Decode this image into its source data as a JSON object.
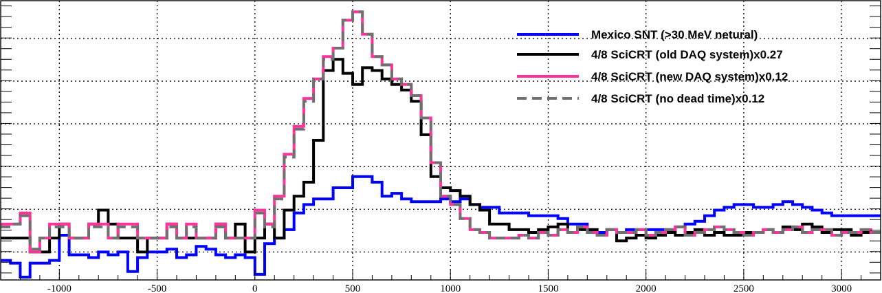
{
  "chart_data": {
    "type": "line",
    "title": "",
    "xlabel": "",
    "ylabel": "",
    "xlim": [
      -1300,
      3200
    ],
    "ylim": [
      0,
      100
    ],
    "grid": true,
    "legend_position": "top-right",
    "x_ticks": [
      -1000,
      -500,
      0,
      500,
      1000,
      1500,
      2000,
      2500,
      3000
    ],
    "x_tick_labels": [
      "-1000",
      "-500",
      "0",
      "500",
      "1000",
      "1500",
      "2000",
      "2500",
      "3000"
    ],
    "x_bin_edges": [
      -1300,
      -1250,
      -1200,
      -1150,
      -1100,
      -1050,
      -1000,
      -950,
      -900,
      -850,
      -800,
      -750,
      -700,
      -650,
      -600,
      -550,
      -500,
      -450,
      -400,
      -350,
      -300,
      -250,
      -200,
      -150,
      -100,
      -50,
      0,
      50,
      100,
      150,
      200,
      250,
      300,
      350,
      400,
      450,
      500,
      550,
      600,
      650,
      700,
      750,
      800,
      850,
      900,
      950,
      1000,
      1050,
      1100,
      1150,
      1200,
      1250,
      1300,
      1350,
      1400,
      1450,
      1500,
      1550,
      1600,
      1650,
      1700,
      1750,
      1800,
      1850,
      1900,
      1950,
      2000,
      2050,
      2100,
      2150,
      2200,
      2250,
      2300,
      2350,
      2400,
      2450,
      2500,
      2550,
      2600,
      2650,
      2700,
      2750,
      2800,
      2850,
      2900,
      2950,
      3000,
      3050,
      3100,
      3150,
      3200
    ],
    "series": [
      {
        "name": "Mexico SNT (>30 MeV netural)",
        "color": "#0000ff",
        "style": "solid",
        "values": [
          7,
          6,
          1,
          6,
          6,
          7,
          16,
          9,
          9,
          8,
          10,
          9,
          10,
          3,
          8,
          10,
          10,
          11,
          8,
          9,
          12,
          11,
          9,
          8,
          9,
          8,
          2,
          13,
          15,
          18,
          24,
          27,
          29,
          29,
          33,
          33,
          37,
          37,
          35,
          30,
          31,
          29,
          28,
          28,
          28,
          29,
          28,
          29,
          27,
          26,
          26,
          24,
          24,
          24,
          23,
          23,
          23,
          22,
          20,
          20,
          18,
          17,
          18,
          17,
          18,
          18,
          18,
          18,
          18,
          19,
          20,
          21,
          23,
          25,
          26,
          27,
          27,
          26,
          26,
          27,
          28,
          27,
          26,
          25,
          24,
          23,
          23,
          23,
          23,
          23
        ]
      },
      {
        "name": "4/8 SciCRT (old DAQ system)x0.27",
        "color": "#000000",
        "style": "solid",
        "values": [
          15,
          15,
          15,
          10,
          10,
          15,
          20,
          15,
          15,
          20,
          25,
          20,
          15,
          15,
          10,
          15,
          15,
          20,
          15,
          15,
          15,
          15,
          20,
          15,
          20,
          10,
          15,
          20,
          15,
          25,
          30,
          35,
          50,
          75,
          79,
          74,
          70,
          76,
          75,
          72,
          70,
          68,
          64,
          52,
          37,
          33,
          32,
          30,
          27,
          25,
          20,
          20,
          18,
          18,
          17,
          18,
          19,
          20,
          17,
          18,
          18,
          16,
          18,
          14,
          15,
          16,
          15,
          16,
          17,
          16,
          17,
          18,
          16,
          17,
          16,
          16,
          17,
          17,
          18,
          17,
          19,
          18,
          20,
          19,
          17,
          18,
          18,
          16,
          17,
          17
        ]
      },
      {
        "name": "4/8 SciCRT (new DAQ system)x0.12",
        "color": "#ff3399",
        "style": "solid",
        "values": [
          20,
          20,
          24,
          10,
          15,
          20,
          20,
          15,
          15,
          20,
          20,
          15,
          20,
          20,
          15,
          15,
          15,
          20,
          15,
          20,
          15,
          15,
          20,
          15,
          15,
          15,
          25,
          20,
          30,
          45,
          55,
          65,
          72,
          80,
          83,
          93,
          96,
          88,
          80,
          77,
          72,
          70,
          66,
          58,
          42,
          30,
          27,
          22,
          18,
          17,
          15,
          15,
          15,
          16,
          15,
          17,
          16,
          18,
          17,
          19,
          17,
          16,
          18,
          17,
          17,
          18,
          16,
          17,
          18,
          19,
          16,
          17,
          18,
          19,
          18,
          17,
          16,
          17,
          18,
          17,
          18,
          19,
          17,
          18,
          18,
          16,
          17,
          17,
          18,
          17
        ]
      },
      {
        "name": "4/8 SciCRT (no dead time)x0.12",
        "color": "#707070",
        "style": "dashed",
        "values": [
          19,
          20,
          23,
          11,
          15,
          19,
          19,
          15,
          15,
          19,
          19,
          15,
          19,
          19,
          15,
          15,
          15,
          19,
          15,
          19,
          15,
          15,
          19,
          15,
          15,
          15,
          24,
          19,
          29,
          44,
          54,
          64,
          72,
          79,
          83,
          93,
          96,
          88,
          80,
          77,
          72,
          70,
          66,
          58,
          42,
          30,
          27,
          22,
          18,
          17,
          15,
          15,
          15,
          16,
          15,
          17,
          16,
          18,
          17,
          19,
          17,
          16,
          18,
          17,
          17,
          18,
          16,
          17,
          18,
          19,
          16,
          17,
          18,
          19,
          18,
          17,
          16,
          17,
          18,
          17,
          18,
          19,
          17,
          18,
          18,
          16,
          17,
          17,
          18,
          17
        ]
      }
    ]
  }
}
